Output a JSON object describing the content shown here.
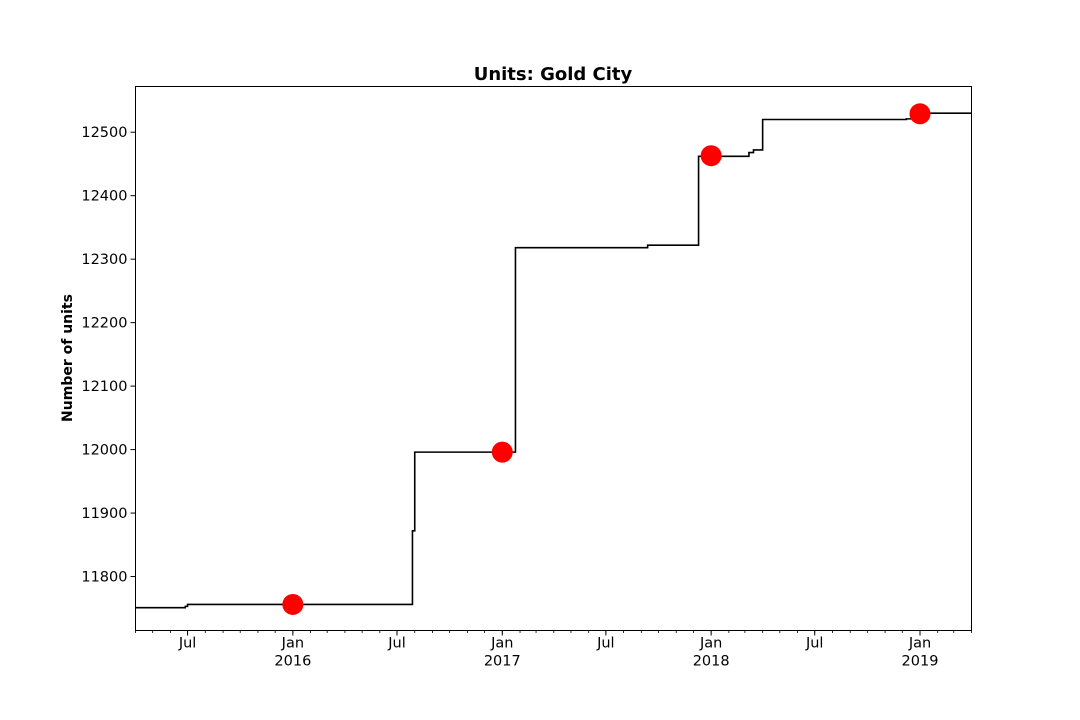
{
  "chart_data": {
    "type": "line",
    "title": "Units: Gold City",
    "xlabel": "",
    "ylabel": "Number of units",
    "xlim": [
      "2015-04-01",
      "2019-04-01"
    ],
    "ylim": [
      11715,
      12572
    ],
    "y_ticks": [
      11800,
      11900,
      12000,
      12100,
      12200,
      12300,
      12400,
      12500
    ],
    "x_ticks": [
      {
        "date": "2015-07-01",
        "label": "Jul",
        "year": ""
      },
      {
        "date": "2016-01-01",
        "label": "Jan",
        "year": "2016"
      },
      {
        "date": "2016-07-01",
        "label": "Jul",
        "year": ""
      },
      {
        "date": "2017-01-01",
        "label": "Jan",
        "year": "2017"
      },
      {
        "date": "2017-07-01",
        "label": "Jul",
        "year": ""
      },
      {
        "date": "2018-01-01",
        "label": "Jan",
        "year": "2018"
      },
      {
        "date": "2018-07-01",
        "label": "Jul",
        "year": ""
      },
      {
        "date": "2019-01-01",
        "label": "Jan",
        "year": "2019"
      }
    ],
    "minor_ticks": "monthly",
    "grid": false,
    "series": [
      {
        "style": "step",
        "color": "#000000",
        "points": [
          {
            "x": "2015-04-01",
            "y": 11751
          },
          {
            "x": "2015-06-27",
            "y": 11751
          },
          {
            "x": "2015-06-27",
            "y": 11753
          },
          {
            "x": "2015-07-01",
            "y": 11753
          },
          {
            "x": "2015-07-01",
            "y": 11756
          },
          {
            "x": "2016-07-28",
            "y": 11756
          },
          {
            "x": "2016-07-28",
            "y": 11872
          },
          {
            "x": "2016-08-01",
            "y": 11872
          },
          {
            "x": "2016-08-01",
            "y": 11996
          },
          {
            "x": "2017-01-24",
            "y": 11996
          },
          {
            "x": "2017-01-24",
            "y": 12318
          },
          {
            "x": "2017-09-12",
            "y": 12318
          },
          {
            "x": "2017-09-12",
            "y": 12322
          },
          {
            "x": "2017-12-10",
            "y": 12322
          },
          {
            "x": "2017-12-10",
            "y": 12462
          },
          {
            "x": "2018-03-08",
            "y": 12462
          },
          {
            "x": "2018-03-08",
            "y": 12468
          },
          {
            "x": "2018-03-16",
            "y": 12468
          },
          {
            "x": "2018-03-16",
            "y": 12472
          },
          {
            "x": "2018-04-01",
            "y": 12472
          },
          {
            "x": "2018-04-01",
            "y": 12520
          },
          {
            "x": "2018-12-08",
            "y": 12520
          },
          {
            "x": "2018-12-08",
            "y": 12521
          },
          {
            "x": "2018-12-24",
            "y": 12521
          },
          {
            "x": "2018-12-24",
            "y": 12530
          },
          {
            "x": "2019-04-01",
            "y": 12530
          }
        ]
      },
      {
        "style": "markers",
        "color": "#ff0000",
        "points": [
          {
            "x": "2016-01-01",
            "y": 11756
          },
          {
            "x": "2017-01-01",
            "y": 11996
          },
          {
            "x": "2018-01-01",
            "y": 12463
          },
          {
            "x": "2019-01-01",
            "y": 12529
          }
        ]
      }
    ]
  }
}
